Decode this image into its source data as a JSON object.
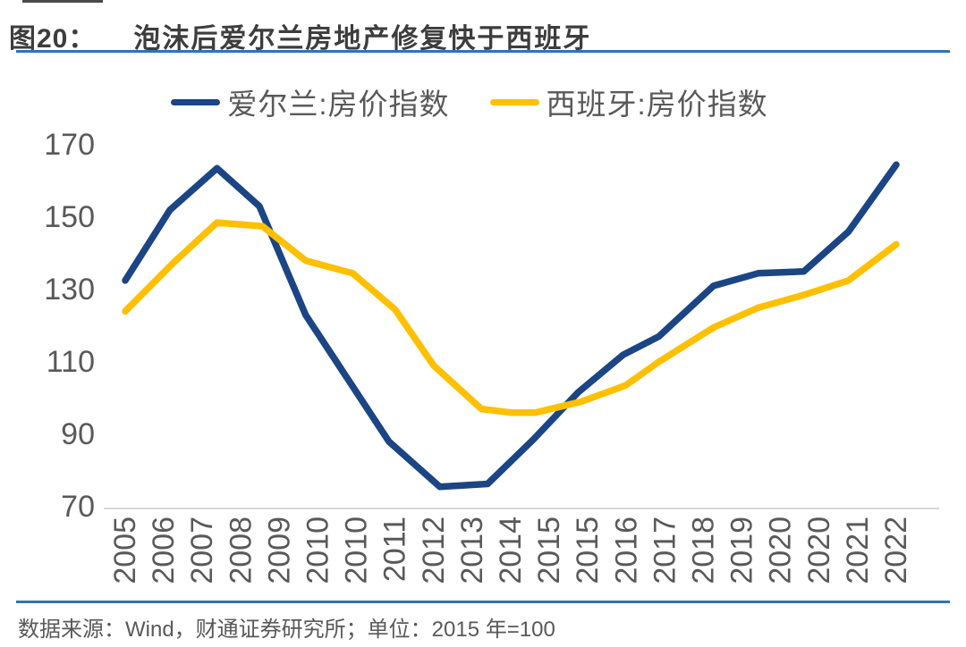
{
  "page": {
    "figure_label": "图20：",
    "title": "泡沫后爱尔兰房地产修复快于西班牙",
    "source_note": "数据来源：Wind，财通证券研究所；单位：2015 年=100"
  },
  "colors": {
    "ireland_line": "#1B4584",
    "spain_line": "#FFC000",
    "separator_blue": "#2E74B5",
    "axis_text_gray": "#595959",
    "axis_line_gray": "#D9D9D9",
    "title_text": "#3D3D3D"
  },
  "chart_data": {
    "type": "line",
    "title": "泡沫后爱尔兰房地产修复快于西班牙",
    "unit_note": "2015 年=100",
    "legend_position": "top",
    "grid": false,
    "ylim": [
      70,
      175
    ],
    "y_ticks": [
      170,
      150,
      130,
      110,
      90,
      70
    ],
    "x_tick_labels": [
      "2005",
      "2006",
      "2007",
      "2008",
      "2009",
      "2010",
      "2010",
      "2011",
      "2012",
      "2013",
      "2014",
      "2015",
      "2015",
      "2016",
      "2017",
      "2018",
      "2019",
      "2020",
      "2020",
      "2021",
      "2022"
    ],
    "x_mode": "fraction_of_axis",
    "series": [
      {
        "name": "爱尔兰:房价指数",
        "color": "#1B4584",
        "points": [
          [
            0.0,
            132.5
          ],
          [
            0.058,
            152.0
          ],
          [
            0.119,
            163.5
          ],
          [
            0.174,
            153.0
          ],
          [
            0.234,
            123.0
          ],
          [
            0.342,
            88.0
          ],
          [
            0.408,
            75.5
          ],
          [
            0.47,
            76.3
          ],
          [
            0.529,
            88.5
          ],
          [
            0.587,
            101.5
          ],
          [
            0.646,
            112.0
          ],
          [
            0.692,
            117.0
          ],
          [
            0.763,
            131.0
          ],
          [
            0.821,
            134.5
          ],
          [
            0.88,
            135.0
          ],
          [
            0.938,
            146.0
          ],
          [
            1.0,
            164.5
          ]
        ]
      },
      {
        "name": "西班牙:房价指数",
        "color": "#FFC000",
        "points": [
          [
            0.0,
            124.0
          ],
          [
            0.063,
            137.5
          ],
          [
            0.119,
            148.5
          ],
          [
            0.178,
            147.5
          ],
          [
            0.234,
            138.0
          ],
          [
            0.295,
            134.5
          ],
          [
            0.35,
            124.5
          ],
          [
            0.4,
            109.0
          ],
          [
            0.462,
            97.0
          ],
          [
            0.5,
            96.0
          ],
          [
            0.532,
            96.0
          ],
          [
            0.591,
            99.0
          ],
          [
            0.649,
            103.5
          ],
          [
            0.692,
            110.0
          ],
          [
            0.763,
            119.5
          ],
          [
            0.821,
            125.0
          ],
          [
            0.88,
            128.5
          ],
          [
            0.938,
            132.5
          ],
          [
            1.0,
            142.5
          ]
        ]
      }
    ]
  }
}
